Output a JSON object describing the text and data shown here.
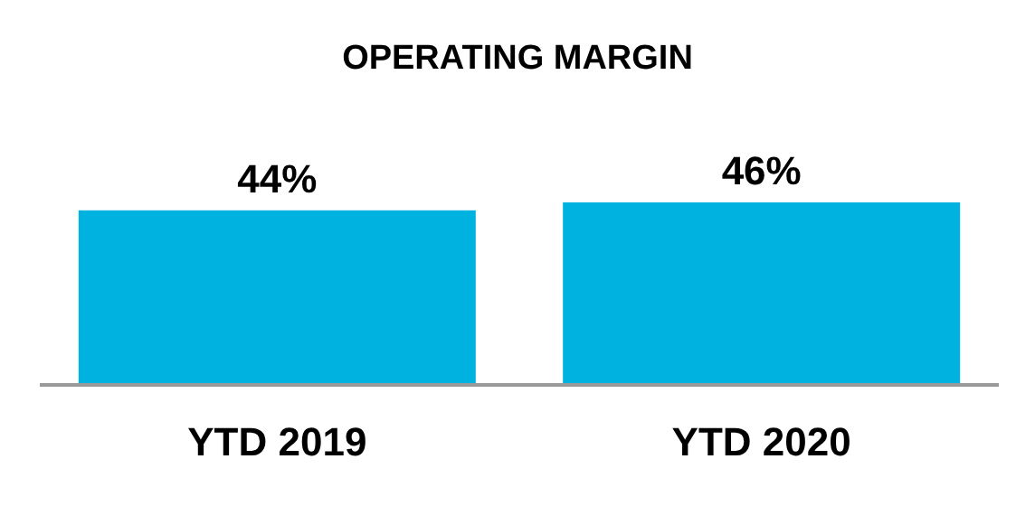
{
  "chart_data": {
    "type": "bar",
    "title": "OPERATING MARGIN",
    "categories": [
      "YTD 2019",
      "YTD 2020"
    ],
    "values": [
      44,
      46
    ],
    "value_labels": [
      "44%",
      "46%"
    ],
    "color": "#00b2e0"
  }
}
